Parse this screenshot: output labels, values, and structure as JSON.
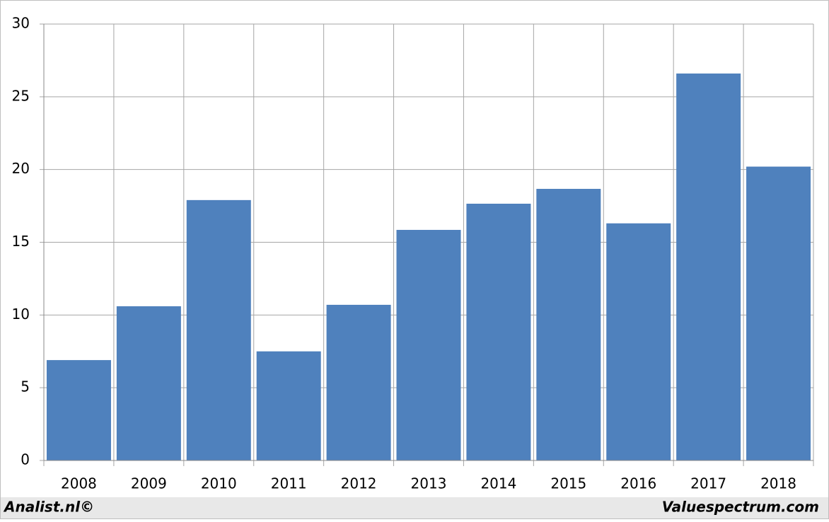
{
  "chart_data": {
    "type": "bar",
    "categories": [
      "2008",
      "2009",
      "2010",
      "2011",
      "2012",
      "2013",
      "2014",
      "2015",
      "2016",
      "2017",
      "2018"
    ],
    "values": [
      6.9,
      10.6,
      17.9,
      7.5,
      10.7,
      15.85,
      17.65,
      18.67,
      16.3,
      26.6,
      20.2
    ],
    "color": "#4f81bd",
    "ylim": [
      0,
      30
    ],
    "yticks": [
      0,
      5,
      10,
      15,
      20,
      25,
      30
    ],
    "grid": true,
    "annotations": [
      "Analist.nl©",
      "Valuespectrum.com"
    ]
  }
}
